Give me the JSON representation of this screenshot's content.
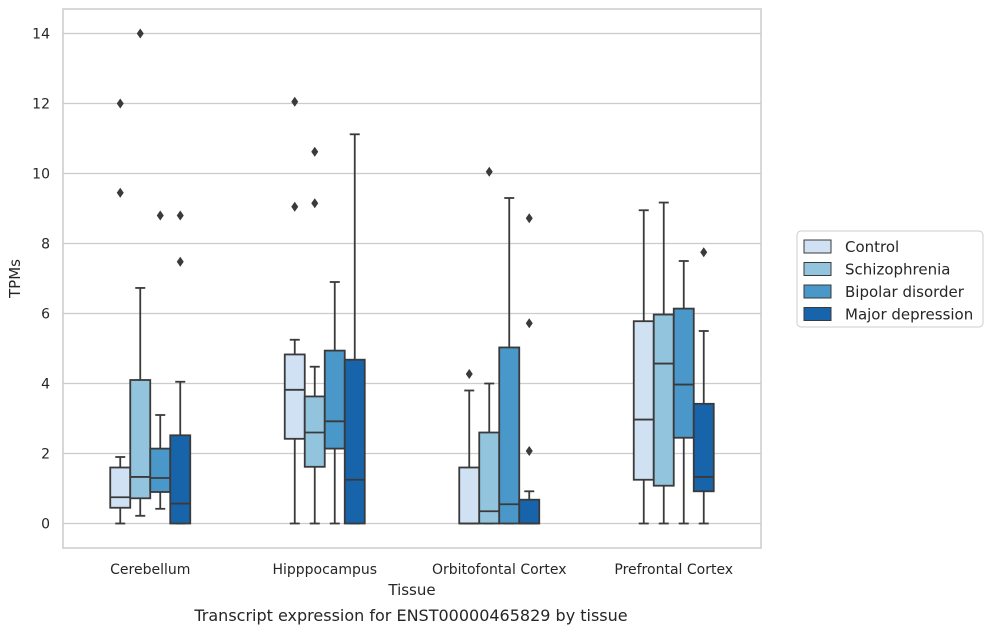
{
  "chart_data": {
    "type": "box",
    "categories": [
      "Cerebellum",
      "Hipppocampus",
      "Orbitofontal Cortex",
      "Prefrontal Cortex"
    ],
    "xlabel": "Tissue",
    "ylabel": "TPMs",
    "ylim": [
      -0.7,
      14.7
    ],
    "yticks": [
      0,
      2,
      4,
      6,
      8,
      10,
      12,
      14
    ],
    "grid": true,
    "legend_position": "right",
    "series": [
      {
        "name": "Control",
        "color": "#cfe1f2",
        "boxes": [
          {
            "whisker_low": 0,
            "q1": 0.45,
            "median": 0.75,
            "q3": 1.6,
            "whisker_high": 1.9,
            "outliers": [
              9.45,
              12.0
            ]
          },
          {
            "whisker_low": 0,
            "q1": 2.42,
            "median": 3.82,
            "q3": 4.83,
            "whisker_high": 5.25,
            "outliers": [
              9.05,
              12.05
            ]
          },
          {
            "whisker_low": 0,
            "q1": 0,
            "median": 0,
            "q3": 1.6,
            "whisker_high": 3.8,
            "outliers": [
              4.27
            ]
          },
          {
            "whisker_low": 0,
            "q1": 1.25,
            "median": 2.97,
            "q3": 5.78,
            "whisker_high": 8.95,
            "outliers": []
          }
        ]
      },
      {
        "name": "Schizophrenia",
        "color": "#93c4de",
        "boxes": [
          {
            "whisker_low": 0.22,
            "q1": 0.72,
            "median": 1.33,
            "q3": 4.1,
            "whisker_high": 6.73,
            "outliers": [
              14.0
            ]
          },
          {
            "whisker_low": 0,
            "q1": 1.62,
            "median": 2.6,
            "q3": 3.63,
            "whisker_high": 4.48,
            "outliers": [
              9.15,
              10.62
            ]
          },
          {
            "whisker_low": 0,
            "q1": 0,
            "median": 0.35,
            "q3": 2.6,
            "whisker_high": 4.0,
            "outliers": [
              10.05
            ]
          },
          {
            "whisker_low": 0,
            "q1": 1.08,
            "median": 4.57,
            "q3": 5.97,
            "whisker_high": 9.17,
            "outliers": []
          }
        ]
      },
      {
        "name": "Bipolar disorder",
        "color": "#4a98c9",
        "boxes": [
          {
            "whisker_low": 0.42,
            "q1": 0.9,
            "median": 1.3,
            "q3": 2.14,
            "whisker_high": 3.1,
            "outliers": [
              8.8
            ]
          },
          {
            "whisker_low": 0,
            "q1": 2.14,
            "median": 2.92,
            "q3": 4.94,
            "whisker_high": 6.9,
            "outliers": []
          },
          {
            "whisker_low": 0,
            "q1": 0,
            "median": 0.55,
            "q3": 5.03,
            "whisker_high": 9.3,
            "outliers": []
          },
          {
            "whisker_low": 0,
            "q1": 2.45,
            "median": 3.97,
            "q3": 6.14,
            "whisker_high": 7.5,
            "outliers": []
          }
        ]
      },
      {
        "name": "Major depression",
        "color": "#1764ab",
        "boxes": [
          {
            "whisker_low": 0,
            "q1": 0,
            "median": 0.57,
            "q3": 2.52,
            "whisker_high": 4.05,
            "outliers": [
              7.48,
              8.8
            ]
          },
          {
            "whisker_low": 0,
            "q1": 0,
            "median": 1.25,
            "q3": 4.68,
            "whisker_high": 11.12,
            "outliers": []
          },
          {
            "whisker_low": 0,
            "q1": 0,
            "median": 0,
            "q3": 0.68,
            "whisker_high": 0.92,
            "outliers": [
              2.07,
              5.72,
              8.72
            ]
          },
          {
            "whisker_low": 0,
            "q1": 0.92,
            "median": 1.33,
            "q3": 3.42,
            "whisker_high": 5.5,
            "outliers": [
              7.75
            ]
          }
        ]
      }
    ]
  },
  "caption": "Transcript expression for ENST00000465829 by tissue"
}
